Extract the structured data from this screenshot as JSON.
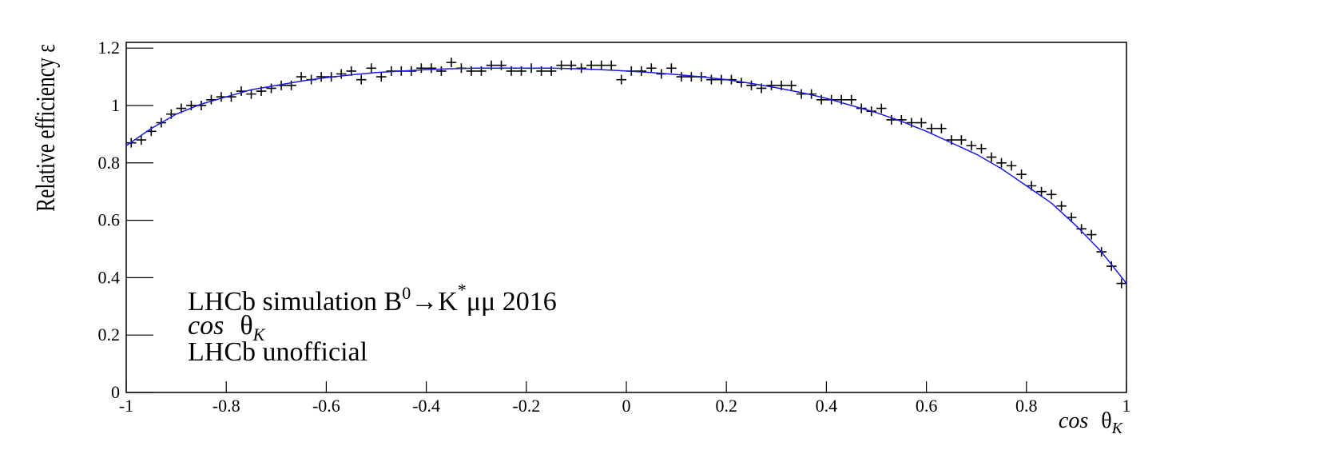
{
  "chart_data": {
    "type": "scatter",
    "ylabel": "Relative efficiency ε",
    "xlabel": {
      "func": "cos",
      "var": "θ",
      "sub": "K"
    },
    "annotations": [
      [
        "LHCb simulation B",
        "0",
        "→K",
        "*",
        "μμ 2016"
      ],
      {
        "func": "cos",
        "var": "θ",
        "sub": "K"
      },
      "LHCb unofficial"
    ],
    "xlim": [
      -1,
      1
    ],
    "ylim": [
      0,
      1.22
    ],
    "xticks": [
      -1,
      -0.8,
      -0.6,
      -0.4,
      -0.2,
      0,
      0.2,
      0.4,
      0.6,
      0.8,
      1
    ],
    "yticks": [
      0,
      0.2,
      0.4,
      0.6,
      0.8,
      1,
      1.2
    ],
    "bin_width": 0.02,
    "series": [
      {
        "color": "#000000",
        "x": [
          -0.99,
          -0.97,
          -0.95,
          -0.93,
          -0.91,
          -0.89,
          -0.87,
          -0.85,
          -0.83,
          -0.81,
          -0.79,
          -0.77,
          -0.75,
          -0.73,
          -0.71,
          -0.69,
          -0.67,
          -0.65,
          -0.63,
          -0.61,
          -0.59,
          -0.57,
          -0.55,
          -0.53,
          -0.51,
          -0.49,
          -0.47,
          -0.45,
          -0.43,
          -0.41,
          -0.39,
          -0.37,
          -0.35,
          -0.33,
          -0.31,
          -0.29,
          -0.27,
          -0.25,
          -0.23,
          -0.21,
          -0.19,
          -0.17,
          -0.15,
          -0.13,
          -0.11,
          -0.09,
          -0.07,
          -0.05,
          -0.03,
          -0.01,
          0.01,
          0.03,
          0.05,
          0.07,
          0.09,
          0.11,
          0.13,
          0.15,
          0.17,
          0.19,
          0.21,
          0.23,
          0.25,
          0.27,
          0.29,
          0.31,
          0.33,
          0.35,
          0.37,
          0.39,
          0.41,
          0.43,
          0.45,
          0.47,
          0.49,
          0.51,
          0.53,
          0.55,
          0.57,
          0.59,
          0.61,
          0.63,
          0.65,
          0.67,
          0.69,
          0.71,
          0.73,
          0.75,
          0.77,
          0.79,
          0.81,
          0.83,
          0.85,
          0.87,
          0.89,
          0.91,
          0.93,
          0.95,
          0.97,
          0.99
        ],
        "values": [
          0.87,
          0.88,
          0.91,
          0.94,
          0.97,
          0.99,
          1.0,
          1.0,
          1.02,
          1.03,
          1.03,
          1.05,
          1.04,
          1.05,
          1.06,
          1.07,
          1.07,
          1.1,
          1.09,
          1.1,
          1.1,
          1.11,
          1.12,
          1.09,
          1.13,
          1.1,
          1.12,
          1.12,
          1.12,
          1.13,
          1.13,
          1.12,
          1.15,
          1.13,
          1.12,
          1.12,
          1.14,
          1.14,
          1.12,
          1.12,
          1.13,
          1.12,
          1.12,
          1.14,
          1.14,
          1.13,
          1.14,
          1.14,
          1.14,
          1.09,
          1.12,
          1.12,
          1.13,
          1.11,
          1.13,
          1.1,
          1.1,
          1.1,
          1.09,
          1.09,
          1.09,
          1.08,
          1.07,
          1.06,
          1.07,
          1.07,
          1.07,
          1.04,
          1.04,
          1.02,
          1.02,
          1.02,
          1.02,
          0.99,
          0.98,
          0.99,
          0.95,
          0.95,
          0.94,
          0.94,
          0.92,
          0.92,
          0.88,
          0.88,
          0.86,
          0.85,
          0.82,
          0.8,
          0.79,
          0.76,
          0.72,
          0.7,
          0.69,
          0.65,
          0.61,
          0.57,
          0.55,
          0.49,
          0.44,
          0.38
        ]
      },
      {
        "type": "line",
        "color": "#1a1ae6",
        "x": [
          -1,
          -0.95,
          -0.9,
          -0.85,
          -0.8,
          -0.75,
          -0.7,
          -0.65,
          -0.6,
          -0.55,
          -0.5,
          -0.45,
          -0.4,
          -0.35,
          -0.3,
          -0.25,
          -0.2,
          -0.15,
          -0.1,
          -0.05,
          0,
          0.05,
          0.1,
          0.15,
          0.2,
          0.25,
          0.3,
          0.35,
          0.4,
          0.45,
          0.5,
          0.55,
          0.6,
          0.65,
          0.7,
          0.75,
          0.8,
          0.85,
          0.9,
          0.95,
          1
        ],
        "values": [
          0.86,
          0.92,
          0.97,
          1.005,
          1.03,
          1.055,
          1.07,
          1.085,
          1.097,
          1.107,
          1.115,
          1.12,
          1.125,
          1.128,
          1.13,
          1.13,
          1.13,
          1.13,
          1.128,
          1.125,
          1.12,
          1.115,
          1.108,
          1.1,
          1.09,
          1.077,
          1.062,
          1.045,
          1.025,
          1.0,
          0.975,
          0.945,
          0.91,
          0.87,
          0.83,
          0.78,
          0.72,
          0.66,
          0.58,
          0.49,
          0.38
        ]
      }
    ]
  }
}
